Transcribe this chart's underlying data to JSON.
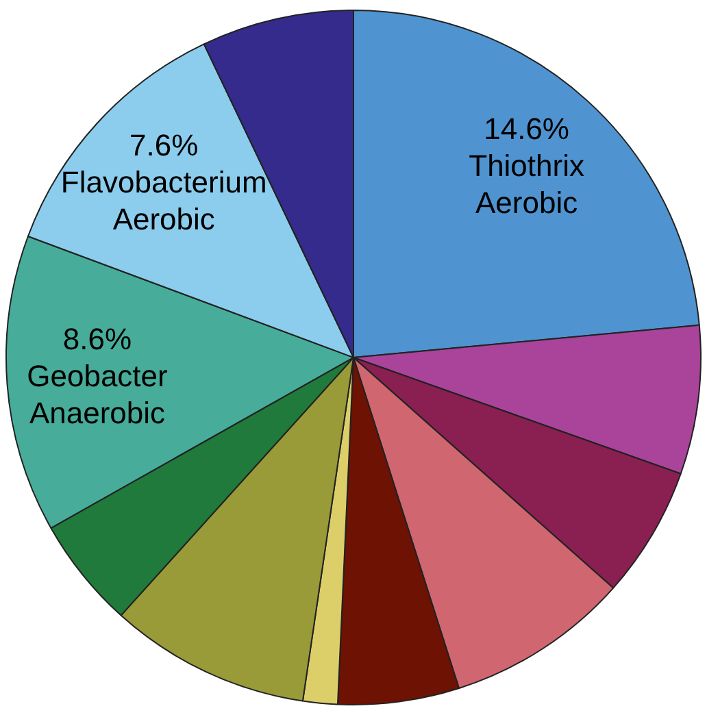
{
  "chart_data": {
    "type": "pie",
    "categories": [
      "Thiothrix Aerobic",
      null,
      null,
      null,
      null,
      null,
      null,
      null,
      "Geobacter Anaerobic",
      "Flavobacterium Aerobic",
      null
    ],
    "values": [
      14.6,
      4.3,
      3.8,
      5.3,
      3.5,
      1.0,
      5.8,
      3.2,
      8.6,
      7.6,
      4.4
    ],
    "value_labels": [
      "14.6%",
      null,
      null,
      null,
      null,
      null,
      null,
      null,
      "8.6%",
      "7.6%",
      null
    ],
    "colors": [
      "#4f94d0",
      "#a9449a",
      "#8a1f52",
      "#cf6670",
      "#6e1204",
      "#dccf6a",
      "#999a38",
      "#1f7a3c",
      "#47ad9a",
      "#8ccdee",
      "#342b8c"
    ],
    "legend": false
  }
}
